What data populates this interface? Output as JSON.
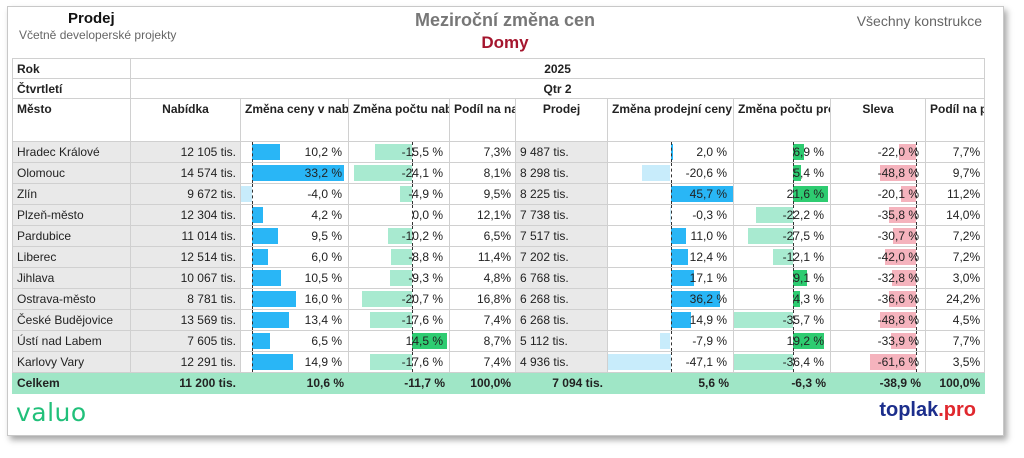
{
  "header": {
    "left_title": "Prodej",
    "left_subtitle": "Včetně developerské projekty",
    "title": "Meziroční změna cen",
    "subtitle": "Domy",
    "right_label": "Všechny konstrukce"
  },
  "table": {
    "row_year_label": "Rok",
    "year": "2025",
    "row_quarter_label": "Čtvrtletí",
    "quarter": "Qtr 2",
    "columns": [
      "Město",
      "Nabídka",
      "Změna ceny v nabídce",
      "Změna počtu nabídek",
      "Podíl na nabídce",
      "Prodej",
      "Změna prodejní ceny",
      "Změna počtu prodejů",
      "Sleva",
      "Podíl na prodeji"
    ],
    "rows": [
      {
        "city": "Hradec Králové",
        "offer": "12 105 tis.",
        "offer_change": "10,2 %",
        "offer_count_change": "-15,5 %",
        "offer_share": "7,3%",
        "sale": "9 487 tis.",
        "sale_change": "2,0 %",
        "sale_count_change": "6,9 %",
        "discount": "-22,0 %",
        "sale_share": "7,7%"
      },
      {
        "city": "Olomouc",
        "offer": "14 574 tis.",
        "offer_change": "33,2 %",
        "offer_count_change": "-24,1 %",
        "offer_share": "8,1%",
        "sale": "8 298 tis.",
        "sale_change": "-20,6 %",
        "sale_count_change": "5,4 %",
        "discount": "-48,8 %",
        "sale_share": "9,7%"
      },
      {
        "city": "Zlín",
        "offer": "9 672 tis.",
        "offer_change": "-4,0 %",
        "offer_count_change": "-4,9 %",
        "offer_share": "9,5%",
        "sale": "8 225 tis.",
        "sale_change": "45,7 %",
        "sale_count_change": "21,6 %",
        "discount": "-20,1 %",
        "sale_share": "11,2%"
      },
      {
        "city": "Plzeň-město",
        "offer": "12 304 tis.",
        "offer_change": "4,2 %",
        "offer_count_change": "0,0 %",
        "offer_share": "12,1%",
        "sale": "7 738 tis.",
        "sale_change": "-0,3 %",
        "sale_count_change": "-22,2 %",
        "discount": "-35,8 %",
        "sale_share": "14,0%"
      },
      {
        "city": "Pardubice",
        "offer": "11 014 tis.",
        "offer_change": "9,5 %",
        "offer_count_change": "-10,2 %",
        "offer_share": "6,5%",
        "sale": "7 517 tis.",
        "sale_change": "11,0 %",
        "sale_count_change": "-27,5 %",
        "discount": "-30,7 %",
        "sale_share": "7,2%"
      },
      {
        "city": "Liberec",
        "offer": "12 514 tis.",
        "offer_change": "6,0 %",
        "offer_count_change": "-8,8 %",
        "offer_share": "11,4%",
        "sale": "7 202 tis.",
        "sale_change": "12,4 %",
        "sale_count_change": "-12,1 %",
        "discount": "-42,0 %",
        "sale_share": "7,2%"
      },
      {
        "city": "Jihlava",
        "offer": "10 067 tis.",
        "offer_change": "10,5 %",
        "offer_count_change": "-9,3 %",
        "offer_share": "4,8%",
        "sale": "6 768 tis.",
        "sale_change": "17,1 %",
        "sale_count_change": "9,1 %",
        "discount": "-32,8 %",
        "sale_share": "3,0%"
      },
      {
        "city": "Ostrava-město",
        "offer": "8 781 tis.",
        "offer_change": "16,0 %",
        "offer_count_change": "-20,7 %",
        "offer_share": "16,8%",
        "sale": "6 268 tis.",
        "sale_change": "36,2 %",
        "sale_count_change": "4,3 %",
        "discount": "-36,6 %",
        "sale_share": "24,2%"
      },
      {
        "city": "České Budějovice",
        "offer": "13 569 tis.",
        "offer_change": "13,4 %",
        "offer_count_change": "-17,6 %",
        "offer_share": "7,4%",
        "sale": "6 268 tis.",
        "sale_change": "14,9 %",
        "sale_count_change": "-35,7 %",
        "discount": "-48,8 %",
        "sale_share": "4,5%"
      },
      {
        "city": "Ústí nad Labem",
        "offer": "7 605 tis.",
        "offer_change": "6,5 %",
        "offer_count_change": "14,5 %",
        "offer_share": "8,7%",
        "sale": "5 112 tis.",
        "sale_change": "-7,9 %",
        "sale_count_change": "19,2 %",
        "discount": "-33,9 %",
        "sale_share": "7,7%"
      },
      {
        "city": "Karlovy Vary",
        "offer": "12 291 tis.",
        "offer_change": "14,9 %",
        "offer_count_change": "-17,6 %",
        "offer_share": "7,4%",
        "sale": "4 936 tis.",
        "sale_change": "-47,1 %",
        "sale_count_change": "-36,4 %",
        "discount": "-61,6 %",
        "sale_share": "3,5%"
      }
    ],
    "total": {
      "city": "Celkem",
      "offer": "11 200 tis.",
      "offer_change": "10,6 %",
      "offer_count_change": "-11,7 %",
      "offer_share": "100,0%",
      "sale": "7 094 tis.",
      "sale_change": "5,6 %",
      "sale_count_change": "-6,3 %",
      "discount": "-38,9 %",
      "sale_share": "100,0%"
    }
  },
  "colors": {
    "offer_change_pos": "#29b6f6",
    "offer_change_neg": "#c8ecfb",
    "count_change_pos": "#2ecc71",
    "count_change_neg": "#a8ead0",
    "discount": "#f5b3bd",
    "total_row": "#9fe6c6"
  },
  "footer": {
    "left_logo": "valuo",
    "right_logo_main": "toplak",
    "right_logo_suffix": ".pro"
  }
}
